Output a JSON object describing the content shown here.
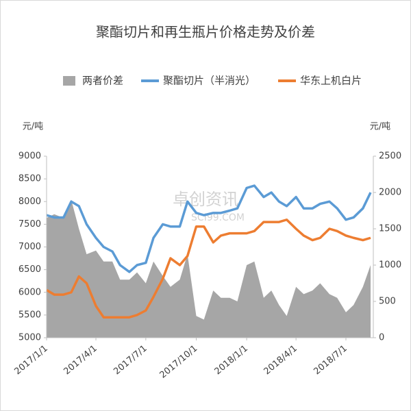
{
  "chart_data": {
    "type": "line",
    "title": "聚酯切片和再生瓶片价格走势及价差",
    "y_unit": "元/吨",
    "y2_unit": "元/吨",
    "watermark": "卓创资讯",
    "watermark_sub": "SCI99.COM",
    "x": [
      "2017/1/1",
      "2017/1/15",
      "2017/2/1",
      "2017/2/15",
      "2017/3/1",
      "2017/3/15",
      "2017/4/1",
      "2017/4/15",
      "2017/5/1",
      "2017/5/15",
      "2017/6/1",
      "2017/6/15",
      "2017/7/1",
      "2017/7/15",
      "2017/8/1",
      "2017/8/15",
      "2017/9/1",
      "2017/9/15",
      "2017/10/1",
      "2017/10/15",
      "2017/11/1",
      "2017/11/15",
      "2017/12/1",
      "2017/12/15",
      "2018/1/1",
      "2018/1/15",
      "2018/2/1",
      "2018/2/15",
      "2018/3/1",
      "2018/3/15",
      "2018/4/1",
      "2018/4/15",
      "2018/5/1",
      "2018/5/15",
      "2018/6/1",
      "2018/6/15",
      "2018/7/1",
      "2018/7/15",
      "2018/8/1",
      "2018/8/15"
    ],
    "xlim": [
      "2017/1/1",
      "2018/8/20"
    ],
    "xticks": [
      "2017/1/1",
      "2017/4/1",
      "2017/7/1",
      "2017/10/1",
      "2018/1/1",
      "2018/4/1",
      "2018/7/1"
    ],
    "ylim": [
      5000,
      9000
    ],
    "yticks": [
      5000,
      5500,
      6000,
      6500,
      7000,
      7500,
      8000,
      8500,
      9000
    ],
    "y2lim": [
      0,
      2500
    ],
    "y2ticks": [
      0,
      500,
      1000,
      1500,
      2000,
      2500
    ],
    "series": [
      {
        "name": "两者价差",
        "kind": "area",
        "axis": "y2",
        "color": "#a6a6a6",
        "values": [
          1650,
          1700,
          1650,
          1900,
          1500,
          1150,
          1200,
          1050,
          1050,
          800,
          800,
          900,
          750,
          1050,
          850,
          700,
          800,
          1150,
          300,
          250,
          650,
          550,
          550,
          500,
          1000,
          1050,
          550,
          650,
          450,
          300,
          700,
          600,
          650,
          750,
          600,
          550,
          350,
          450,
          700,
          1000
        ]
      },
      {
        "name": "聚酯切片（半消光）",
        "kind": "line",
        "color": "#5b9bd5",
        "values": [
          7700,
          7650,
          7650,
          8000,
          7900,
          7500,
          7200,
          7000,
          6900,
          6600,
          6450,
          6600,
          6650,
          7200,
          7500,
          7450,
          7450,
          8000,
          7750,
          7700,
          7750,
          7750,
          7800,
          7850,
          8300,
          8350,
          8100,
          8200,
          8000,
          7900,
          8100,
          7850,
          7850,
          7950,
          8000,
          7850,
          7600,
          7650,
          7850,
          8200
        ]
      },
      {
        "name": "华东上机白片",
        "kind": "line",
        "color": "#ed7d31",
        "values": [
          6050,
          5950,
          5950,
          6000,
          6350,
          6200,
          5700,
          5450,
          5450,
          5450,
          5450,
          5500,
          5600,
          5900,
          6300,
          6750,
          6600,
          6800,
          7450,
          7450,
          7100,
          7250,
          7300,
          7300,
          7300,
          7350,
          7550,
          7550,
          7550,
          7600,
          7400,
          7250,
          7150,
          7200,
          7400,
          7350,
          7250,
          7200,
          7150,
          7200
        ]
      }
    ]
  }
}
